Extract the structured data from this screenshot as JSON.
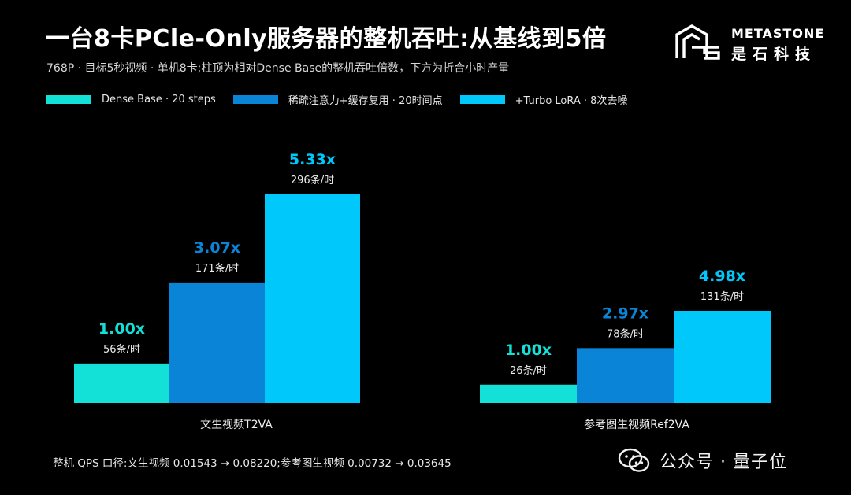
{
  "title": "一台8卡PCle-Only服务器的整机吞吐:从基线到5倍",
  "subtitle": "768P · 目标5秒视频 · 单机8卡;柱顶为相对Dense Base的整机吞吐倍数，下方为折合小时产量",
  "logo": {
    "name_en": "METASTONE",
    "name_cn": "是石科技",
    "icon": "metastone-logo-icon"
  },
  "colors": {
    "background": "#000000",
    "dense": "#13e0d6",
    "sparse": "#0a84d6",
    "turbo": "#00c8fa"
  },
  "footer": "整机 QPS 口径:文生视频 0.01543 → 0.08220;参考图生视频 0.00732 → 0.03645",
  "watermark": {
    "text": "公众号 · 量子位",
    "icon": "wechat-icon"
  },
  "chart_data": {
    "type": "bar",
    "categories": [
      "文生视频T2VA",
      "参考图生视频Ref2VA"
    ],
    "series": [
      {
        "name": "Dense Base · 20 steps",
        "color": "#13e0d6",
        "values": [
          56,
          26
        ],
        "labels": [
          "1.00x",
          "1.00x"
        ],
        "sublabels": [
          "56条/时",
          "26条/时"
        ]
      },
      {
        "name": "稀疏注意力+缓存复用 · 20时间点",
        "color": "#0a84d6",
        "values": [
          171,
          78
        ],
        "labels": [
          "3.07x",
          "2.97x"
        ],
        "sublabels": [
          "171条/时",
          "78条/时"
        ]
      },
      {
        "name": "+Turbo LoRA · 8次去噪",
        "color": "#00c8fa",
        "values": [
          296,
          131
        ],
        "labels": [
          "5.33x",
          "4.98x"
        ],
        "sublabels": [
          "296条/时",
          "131条/时"
        ]
      }
    ],
    "scale": "independent-per-group",
    "legend": "top-left",
    "grid": false
  }
}
